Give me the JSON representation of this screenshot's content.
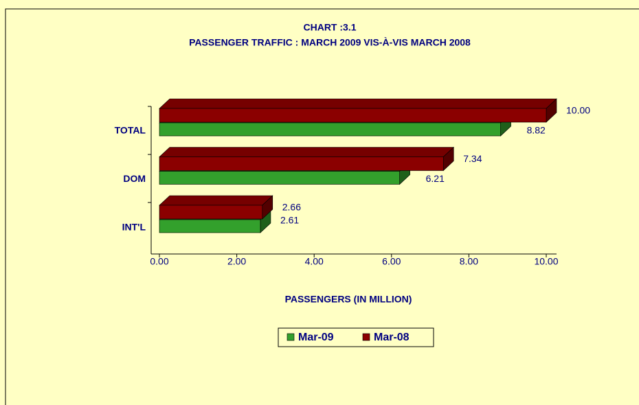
{
  "chart_data": {
    "type": "bar3d_horizontal",
    "title": "CHART :3.1",
    "subtitle": "PASSENGER TRAFFIC : MARCH  2009 VIS-À-VIS MARCH 2008",
    "x_label": "PASSENGERS (IN MILLION)",
    "categories": [
      "TOTAL",
      "DOM",
      "INT'L"
    ],
    "series": [
      {
        "name": "Mar-09",
        "color": "#33a02c",
        "values": [
          8.82,
          6.21,
          2.61
        ],
        "value_labels": [
          "8.82",
          "6.21",
          "2.61"
        ]
      },
      {
        "name": "Mar-08",
        "color": "#8b0000",
        "values": [
          10,
          7.34,
          2.66
        ],
        "value_labels": [
          "10.00",
          "7.34",
          "2.66"
        ]
      }
    ],
    "xlim": [
      0,
      10
    ],
    "xticks": [
      {
        "value": 0,
        "label": "0.00"
      },
      {
        "value": 2,
        "label": "2.00"
      },
      {
        "value": 4,
        "label": "4.00"
      },
      {
        "value": 6,
        "label": "6.00"
      },
      {
        "value": 8,
        "label": "8.00"
      },
      {
        "value": 10,
        "label": "10.00"
      }
    ],
    "legend": "bottom"
  }
}
